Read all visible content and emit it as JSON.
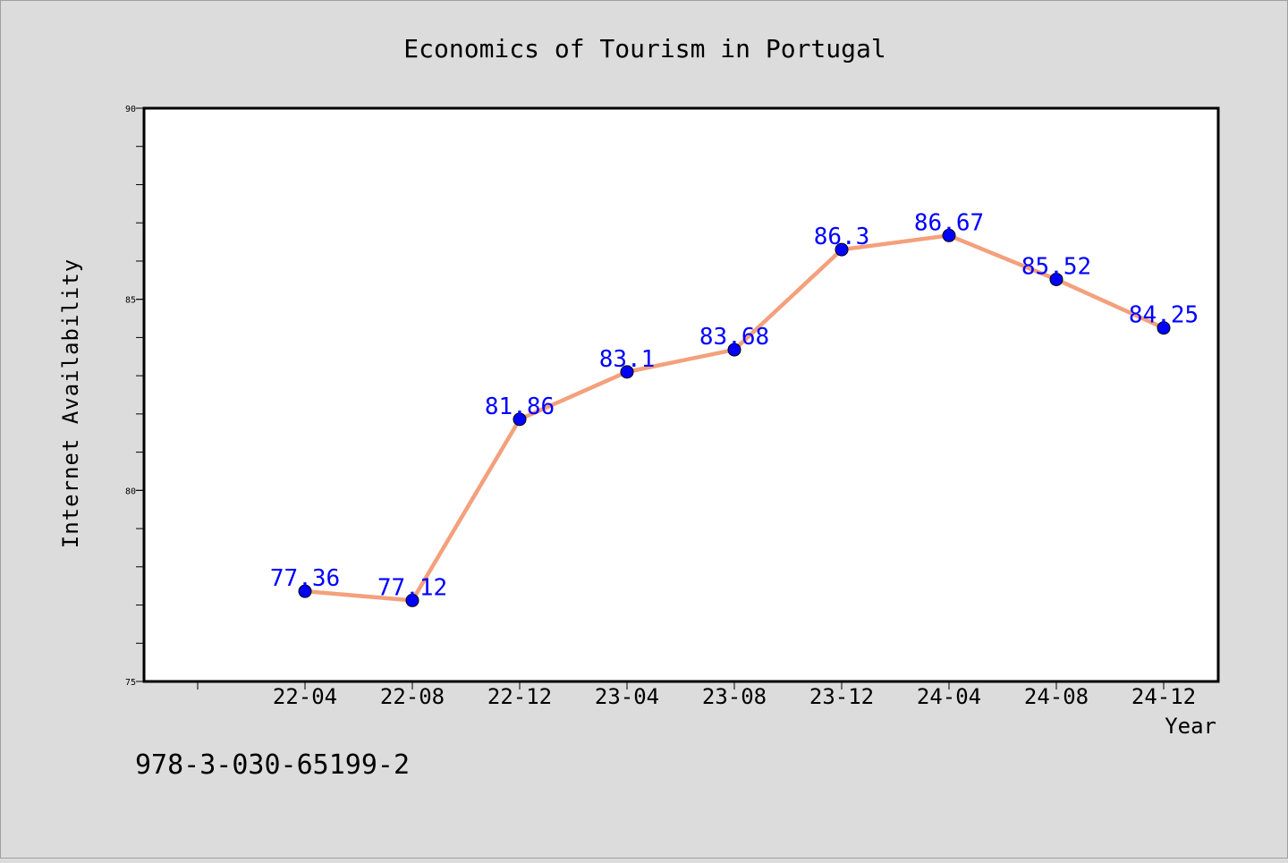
{
  "chart_data": {
    "type": "line",
    "title": "Economics of Tourism in Portugal",
    "xlabel": "Year",
    "ylabel": "Internet Availability",
    "categories": [
      "22-04",
      "22-08",
      "22-12",
      "23-04",
      "23-08",
      "23-12",
      "24-04",
      "24-08",
      "24-12"
    ],
    "values": [
      77.36,
      77.12,
      81.86,
      83.1,
      83.68,
      86.3,
      86.67,
      85.52,
      84.25
    ],
    "data_labels": [
      "77.36",
      "77.12",
      "81.86",
      "83.1",
      "83.68",
      "86.3",
      "86.67",
      "85.52",
      "84.25"
    ],
    "ylim": [
      75,
      90
    ],
    "yticks": [
      75,
      80,
      85,
      90
    ],
    "y_minor_step": 1,
    "grid": false,
    "legend": "none",
    "colors": {
      "line": "#f4a07c",
      "marker": "#0000ff",
      "data_label": "#0000ff",
      "plot_background": "#ffffff",
      "figure_background": "#dcdcdc"
    }
  },
  "annotation": {
    "text": "978-3-030-65199-2"
  }
}
